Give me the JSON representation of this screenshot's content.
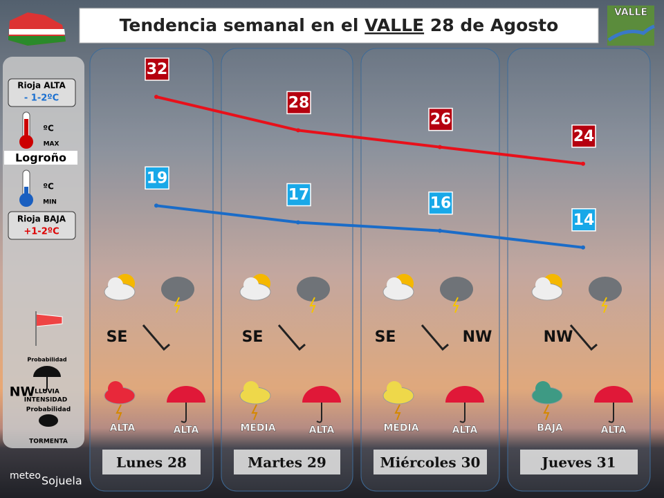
{
  "title": {
    "pre": "Tendencia semanal en el",
    "highlight": "VALLE",
    "post": "28 de Agosto"
  },
  "logo": "VALLE",
  "legend": {
    "alta_label": "Rioja ALTA",
    "alta_value": "- 1-2ºC",
    "max_unit": "ºC",
    "max_label": "MAX",
    "city": "Logroño",
    "min_unit": "ºC",
    "min_label": "MIN",
    "baja_label": "Rioja BAJA",
    "baja_value": "+1-2ºC",
    "rain_prob": "Probabilidad",
    "rain": "LLUVIA",
    "intensity": "INTENSIDAD",
    "storm_prob": "Probabilidad",
    "storm": "TORMENTA",
    "wind": "NW"
  },
  "days": [
    {
      "name": "Lunes 28",
      "max": 32,
      "min": 19,
      "wind": [
        "SE"
      ],
      "intensity": "ALTA",
      "rain_prob": "ALTA"
    },
    {
      "name": "Martes 29",
      "max": 28,
      "min": 17,
      "wind": [
        "SE"
      ],
      "intensity": "MEDIA",
      "rain_prob": "ALTA"
    },
    {
      "name": "Miércoles 30",
      "max": 26,
      "min": 16,
      "wind": [
        "SE",
        "NW"
      ],
      "intensity": "MEDIA",
      "rain_prob": "ALTA"
    },
    {
      "name": "Jueves 31",
      "max": 24,
      "min": 14,
      "wind": [
        "NW"
      ],
      "intensity": "BAJA",
      "rain_prob": "ALTA"
    }
  ],
  "credit": {
    "line1": "meteo",
    "line2": "Sojuela"
  }
}
